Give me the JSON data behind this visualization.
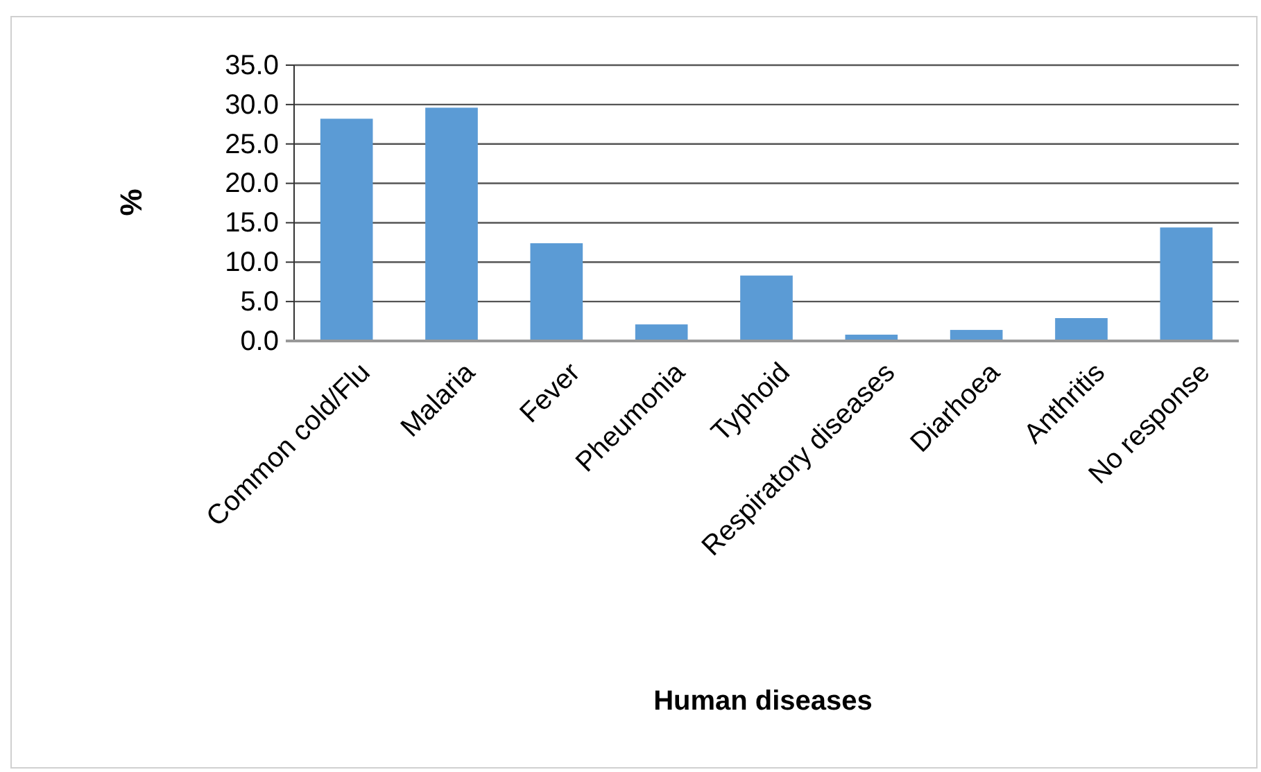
{
  "chart_data": {
    "type": "bar",
    "xlabel": "Human diseases",
    "ylabel": "%",
    "categories": [
      "Common cold/Flu",
      "Malaria",
      "Fever",
      "Pheumonia",
      "Typhoid",
      "Respiratory diseases",
      "Diarhoea",
      "Anthritis",
      "No response"
    ],
    "values": [
      28.2,
      29.6,
      12.4,
      2.1,
      8.3,
      0.8,
      1.4,
      2.9,
      14.4
    ],
    "color": "#5b9bd5",
    "ylim": [
      0,
      35
    ],
    "yticks": [
      {
        "value": 0,
        "label": "0.0"
      },
      {
        "value": 5,
        "label": "5.0"
      },
      {
        "value": 10,
        "label": "10.0"
      },
      {
        "value": 15,
        "label": "15.0"
      },
      {
        "value": 20,
        "label": "20.0"
      },
      {
        "value": 25,
        "label": "25.0"
      },
      {
        "value": 30,
        "label": "30.0"
      },
      {
        "value": 35,
        "label": "35.0"
      }
    ],
    "grid": "y"
  }
}
